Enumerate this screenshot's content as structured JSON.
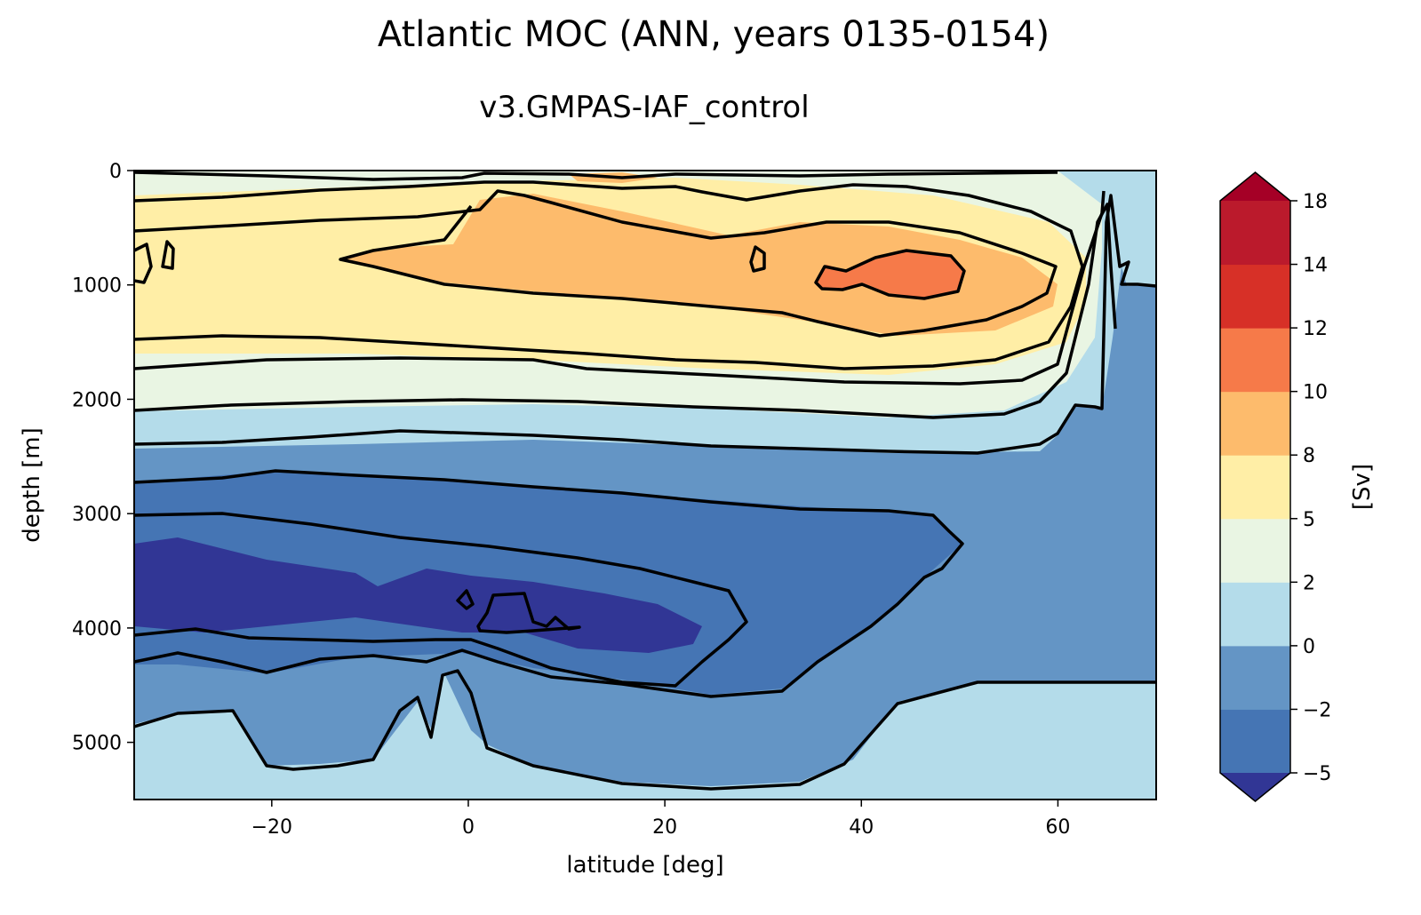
{
  "chart_data": {
    "type": "contourf",
    "title": "Atlantic MOC (ANN, years 0135-0154)",
    "subtitle": "v3.GMPAS-IAF_control",
    "xlabel": "latitude [deg]",
    "ylabel": "depth [m]",
    "colorbar_label": "[Sv]",
    "xlim": [
      -34,
      70
    ],
    "ylim": [
      5500,
      0
    ],
    "x_ticks": [
      -20,
      0,
      20,
      40,
      60
    ],
    "x_tick_labels": [
      "−20",
      "0",
      "20",
      "40",
      "60"
    ],
    "y_ticks": [
      0,
      1000,
      2000,
      3000,
      4000,
      5000
    ],
    "y_tick_labels": [
      "0",
      "1000",
      "2000",
      "3000",
      "4000",
      "5000"
    ],
    "levels": [
      -5,
      -2,
      0,
      2,
      5,
      8,
      10,
      12,
      14,
      18
    ],
    "level_labels": [
      "−5",
      "−2",
      "0",
      "2",
      "5",
      "8",
      "10",
      "12",
      "14",
      "18"
    ],
    "extend": "both",
    "colors": {
      "under": "#313695",
      "bands": [
        "#4575b4",
        "#6495c5",
        "#b4dcea",
        "#e9f5e3",
        "#ffeea6",
        "#fdbb6c",
        "#f67a49",
        "#d73027",
        "#bb1a2c"
      ],
      "over": "#a50026",
      "contour_line": "#000000"
    },
    "features": [
      {
        "name": "upper-cell",
        "level_min": 5,
        "lat_range": [
          -34,
          62
        ],
        "depth_range": [
          200,
          1700
        ]
      },
      {
        "name": "upper-core",
        "level_min": 8,
        "lat_range": [
          -13,
          58
        ],
        "depth_range": [
          250,
          1450
        ]
      },
      {
        "name": "upper-max",
        "level_min": 10,
        "lat_range": [
          36,
          50
        ],
        "depth_range": [
          700,
          1100
        ]
      },
      {
        "name": "deep-cell",
        "level_max": -2,
        "lat_range": [
          -34,
          50
        ],
        "depth_range": [
          2700,
          4650
        ]
      },
      {
        "name": "deep-core",
        "level_max": -5,
        "lat_range": [
          -34,
          24
        ],
        "depth_range": [
          3300,
          4200
        ]
      },
      {
        "name": "bottom-cell",
        "level_min": 0,
        "lat_range": [
          -34,
          70
        ],
        "depth_range": [
          4300,
          5500
        ]
      }
    ]
  }
}
